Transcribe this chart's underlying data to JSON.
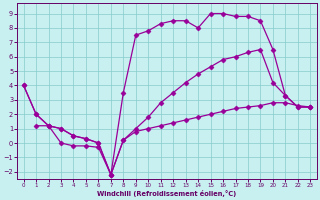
{
  "xlabel": "Windchill (Refroidissement éolien,°C)",
  "line_color": "#990099",
  "bg_color": "#c8f0f0",
  "xlim": [
    -0.5,
    23.5
  ],
  "ylim": [
    -2.5,
    9.7
  ],
  "xticks": [
    0,
    1,
    2,
    3,
    4,
    5,
    6,
    7,
    8,
    9,
    10,
    11,
    12,
    13,
    14,
    15,
    16,
    17,
    18,
    19,
    20,
    21,
    22,
    23
  ],
  "yticks": [
    -2,
    -1,
    0,
    1,
    2,
    3,
    4,
    5,
    6,
    7,
    8,
    9
  ],
  "line1_x": [
    0,
    1,
    2,
    3,
    4,
    5,
    6,
    7,
    8,
    9,
    10,
    11,
    12,
    13,
    14,
    15,
    16,
    17,
    18,
    19,
    20,
    21,
    22,
    23
  ],
  "line1_y": [
    4.0,
    2.0,
    1.2,
    1.0,
    0.5,
    0.3,
    0.0,
    -2.2,
    3.5,
    7.5,
    7.8,
    8.3,
    8.5,
    8.5,
    8.0,
    9.0,
    9.0,
    8.8,
    8.8,
    8.5,
    6.5,
    3.3,
    2.5,
    2.5
  ],
  "line2_x": [
    0,
    1,
    2,
    3,
    4,
    5,
    6,
    7,
    8,
    9,
    10,
    11,
    12,
    13,
    14,
    15,
    16,
    17,
    18,
    19,
    20,
    21,
    22,
    23
  ],
  "line2_y": [
    4.0,
    2.0,
    1.2,
    1.0,
    0.5,
    0.3,
    0.0,
    -2.2,
    0.2,
    1.0,
    1.8,
    2.8,
    3.5,
    4.2,
    4.8,
    5.3,
    5.8,
    6.0,
    6.3,
    6.5,
    4.2,
    3.3,
    2.5,
    2.5
  ],
  "line3_x": [
    1,
    2,
    3,
    4,
    5,
    6,
    7,
    8,
    9,
    10,
    11,
    12,
    13,
    14,
    15,
    16,
    17,
    18,
    19,
    20,
    21,
    22,
    23
  ],
  "line3_y": [
    1.2,
    1.2,
    0.0,
    -0.2,
    -0.2,
    -0.3,
    -2.2,
    0.2,
    0.8,
    1.0,
    1.2,
    1.4,
    1.6,
    1.8,
    2.0,
    2.2,
    2.4,
    2.5,
    2.6,
    2.8,
    2.8,
    2.6,
    2.5
  ]
}
